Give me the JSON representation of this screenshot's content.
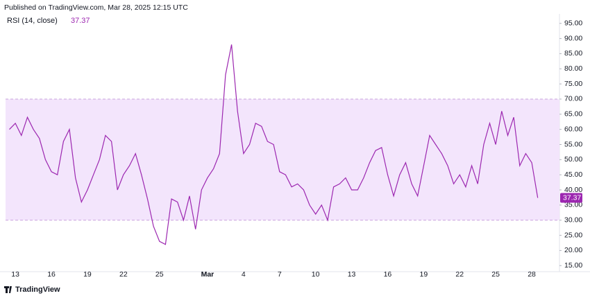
{
  "header": {
    "published": "Published on TradingView.com, Mar 28, 2025 12:15 UTC",
    "brand": "TradingView"
  },
  "chart_data": {
    "type": "line",
    "title": "RSI (14, close)",
    "categories": [
      null,
      "13",
      null,
      null,
      null,
      null,
      null,
      "16",
      null,
      null,
      null,
      null,
      null,
      "19",
      null,
      null,
      null,
      null,
      null,
      "22",
      null,
      null,
      null,
      null,
      null,
      "25",
      null,
      null,
      null,
      null,
      null,
      null,
      null,
      "Mar",
      null,
      null,
      null,
      null,
      null,
      "4",
      null,
      null,
      null,
      null,
      null,
      "7",
      null,
      null,
      null,
      null,
      null,
      "10",
      null,
      null,
      null,
      null,
      null,
      "13",
      null,
      null,
      null,
      null,
      null,
      "16",
      null,
      null,
      null,
      null,
      null,
      "19",
      null,
      null,
      null,
      null,
      null,
      "22",
      null,
      null,
      null,
      null,
      null,
      "25",
      null,
      null,
      null,
      null,
      null,
      "28",
      null
    ],
    "series": [
      {
        "name": "RSI",
        "color": "#9c27b0",
        "values": [
          60,
          62,
          58,
          64,
          60,
          57,
          50,
          46,
          45,
          56,
          60,
          44,
          36,
          40,
          45,
          50,
          58,
          56,
          40,
          45,
          48,
          52,
          45,
          37,
          28,
          23,
          22,
          37,
          36,
          30,
          38,
          27,
          40,
          44,
          47,
          52,
          78,
          88,
          66,
          52,
          55,
          62,
          61,
          56,
          55,
          46,
          45,
          41,
          42,
          40,
          35,
          32,
          35,
          30,
          41,
          42,
          44,
          40,
          40,
          44,
          49,
          53,
          54,
          45,
          38,
          45,
          49,
          42,
          38,
          48,
          58,
          55,
          52,
          48,
          42,
          45,
          41,
          48,
          42,
          55,
          62,
          55,
          66,
          58,
          64,
          48,
          52,
          49,
          37.37
        ]
      }
    ],
    "last_value": {
      "value": 37.37,
      "label": "37.37"
    },
    "band": [
      30,
      70
    ],
    "band_color": "#f3e5fc",
    "ylim": [
      13,
      97
    ],
    "yticks": [
      {
        "value": 15,
        "label": "15.00"
      },
      {
        "value": 20,
        "label": "20.00"
      },
      {
        "value": 25,
        "label": "25.00"
      },
      {
        "value": 30,
        "label": "30.00"
      },
      {
        "value": 35,
        "label": "35.00"
      },
      {
        "value": 40,
        "label": "40.00"
      },
      {
        "value": 45,
        "label": "45.00"
      },
      {
        "value": 50,
        "label": "50.00"
      },
      {
        "value": 55,
        "label": "55.00"
      },
      {
        "value": 60,
        "label": "60.00"
      },
      {
        "value": 65,
        "label": "65.00"
      },
      {
        "value": 70,
        "label": "70.00"
      },
      {
        "value": 75,
        "label": "75.00"
      },
      {
        "value": 80,
        "label": "80.00"
      },
      {
        "value": 85,
        "label": "85.00"
      },
      {
        "value": 90,
        "label": "90.00"
      },
      {
        "value": 95,
        "label": "95.00"
      }
    ],
    "grid": false
  }
}
